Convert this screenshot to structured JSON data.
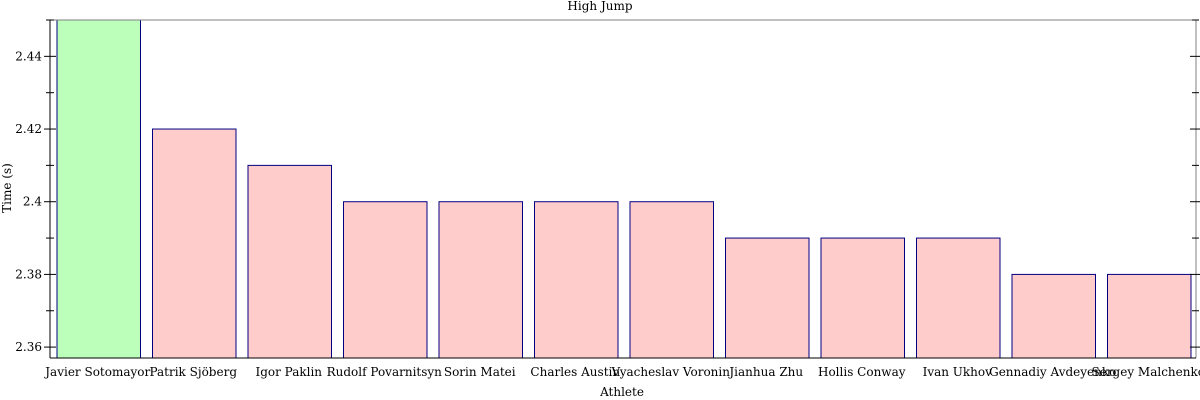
{
  "chart_data": {
    "type": "bar",
    "title": "High Jump",
    "xlabel": "Athlete",
    "ylabel": "Time (s)",
    "ylim": [
      2.357,
      2.45
    ],
    "yticks": [
      2.36,
      2.38,
      2.4,
      2.42,
      2.44
    ],
    "ytick_labels": [
      "2.36",
      "2.38",
      "2.4",
      "2.42",
      "2.44"
    ],
    "categories": [
      "Javier Sotomayor",
      "Patrik Sjöberg",
      "Igor Paklin",
      "Rudolf Povarnitsyn",
      "Sorin Matei",
      "Charles Austin",
      "Vyacheslav Voronin",
      "Jianhua Zhu",
      "Hollis Conway",
      "Ivan Ukhov",
      "Gennadiy Avdeyenko",
      "Sergey Malchenko"
    ],
    "values": [
      2.45,
      2.42,
      2.41,
      2.4,
      2.4,
      2.4,
      2.4,
      2.39,
      2.39,
      2.39,
      2.38,
      2.38
    ],
    "grid": false,
    "colors": {
      "highlight_fill": "#bbffbb",
      "bar_fill": "#ffcccc",
      "bar_stroke": "#000080",
      "axis": "#000000",
      "frame": "#808080"
    }
  }
}
